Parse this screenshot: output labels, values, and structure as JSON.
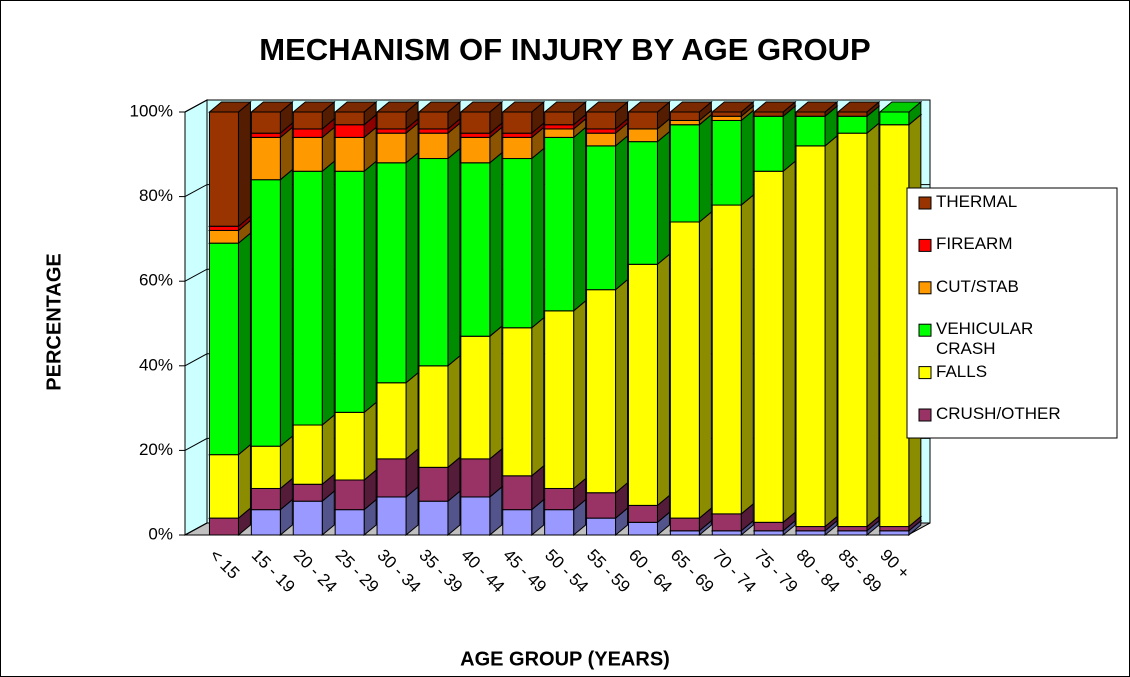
{
  "chart_data": {
    "type": "bar3d_stacked",
    "title": "MECHANISM OF INJURY BY AGE GROUP",
    "y_label": "PERCENTAGE",
    "x_label": "AGE GROUP (YEARS)",
    "categories": [
      "< 15",
      "15 - 19",
      "20 - 24",
      "25 - 29",
      "30 - 34",
      "35 - 39",
      "40 - 44",
      "45 - 49",
      "50 - 54",
      "55 - 59",
      "60 - 64",
      "65 - 69",
      "70 - 74",
      "75 - 79",
      "80 - 84",
      "85 - 89",
      "90 +"
    ],
    "series": [
      {
        "name": null,
        "color": "#9999ff",
        "values": [
          0,
          6,
          8,
          6,
          9,
          8,
          9,
          6,
          6,
          4,
          3,
          1,
          1,
          1,
          1,
          1,
          1
        ]
      },
      {
        "name": "CRUSH/OTHER",
        "color": "#993366",
        "values": [
          4,
          5,
          4,
          7,
          9,
          8,
          9,
          8,
          5,
          6,
          4,
          3,
          4,
          2,
          1,
          1,
          1
        ]
      },
      {
        "name": "FALLS",
        "color": "#ffff00",
        "values": [
          15,
          10,
          14,
          16,
          18,
          24,
          29,
          35,
          42,
          48,
          57,
          70,
          73,
          83,
          90,
          93,
          95
        ]
      },
      {
        "name": "VEHICULAR CRASH",
        "color": "#00ff00",
        "values": [
          50,
          63,
          60,
          57,
          52,
          49,
          41,
          40,
          41,
          34,
          29,
          23,
          20,
          13,
          7,
          4,
          3
        ]
      },
      {
        "name": "CUT/STAB",
        "color": "#ff9900",
        "values": [
          3,
          10,
          8,
          8,
          7,
          6,
          6,
          5,
          2,
          3,
          3,
          1,
          1,
          0,
          0,
          0,
          0
        ]
      },
      {
        "name": "FIREARM",
        "color": "#ff0000",
        "values": [
          1,
          1,
          2,
          3,
          1,
          1,
          1,
          1,
          1,
          1,
          0,
          0,
          0,
          0,
          0,
          0,
          0
        ]
      },
      {
        "name": "THERMAL",
        "color": "#993300",
        "values": [
          27,
          5,
          4,
          3,
          4,
          4,
          5,
          5,
          3,
          4,
          4,
          2,
          1,
          1,
          1,
          1,
          0
        ]
      }
    ],
    "ylim": [
      0,
      100
    ],
    "yticks": [
      {
        "value": 0,
        "label": "0%"
      },
      {
        "value": 20,
        "label": "20%"
      },
      {
        "value": 40,
        "label": "40%"
      },
      {
        "value": 60,
        "label": "60%"
      },
      {
        "value": 80,
        "label": "80%"
      },
      {
        "value": 100,
        "label": "100%"
      }
    ],
    "grid": true,
    "legend": "right"
  }
}
